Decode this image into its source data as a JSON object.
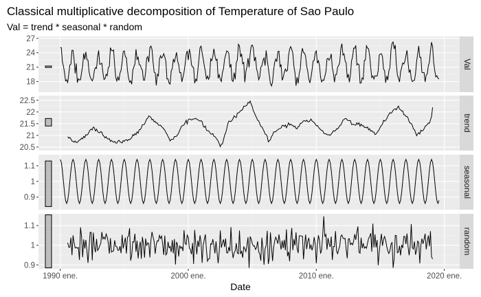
{
  "title": "Classical multiplicative decomposition of Temperature of Sao Paulo",
  "subtitle": "Val = trend * seasonal * random",
  "colors": {
    "panel_bg": "#EBEBEB",
    "grid_major": "#FFFFFF",
    "strip_bg": "#D9D9D9",
    "line": "#000000",
    "scale_bar_fill": "#BEBEBE",
    "tick_text": "#4D4D4D"
  },
  "chart_data": {
    "type": "line",
    "title": "Classical multiplicative decomposition of Temperature of Sao Paulo",
    "subtitle": "Val = trend * seasonal * random",
    "xlabel": "Date",
    "x_unit": "year",
    "xlim": [
      1988.3,
      2021.2
    ],
    "x_ticks": [
      {
        "value": 1990,
        "label": "1990 ene."
      },
      {
        "value": 2000,
        "label": "2000 ene."
      },
      {
        "value": 2010,
        "label": "2010 ene."
      },
      {
        "value": 2020,
        "label": "2020 ene."
      }
    ],
    "grid": true,
    "scale_bars": true,
    "panels": [
      {
        "strip": "Val",
        "ylim": [
          15.8,
          27.4
        ],
        "yticks": [
          18,
          21,
          24,
          27
        ],
        "scale_bar": [
          20.94,
          21.24
        ],
        "kind": "val"
      },
      {
        "strip": "trend",
        "ylim": [
          20.35,
          22.7
        ],
        "yticks": [
          20.5,
          21.0,
          21.5,
          22.0,
          22.5
        ],
        "scale_bar": [
          21.4,
          21.72
        ],
        "kind": "trend"
      },
      {
        "strip": "seasonal",
        "ylim": [
          0.82,
          1.17
        ],
        "yticks": [
          0.9,
          1.0,
          1.1
        ],
        "scale_bar": [
          0.84,
          1.13
        ],
        "kind": "seasonal"
      },
      {
        "strip": "random",
        "ylim": [
          0.88,
          1.16
        ],
        "yticks": [
          0.9,
          1.0,
          1.1
        ],
        "scale_bar": [
          0.885,
          1.155
        ],
        "kind": "random"
      }
    ],
    "start": 1990.0,
    "end": 2019.6,
    "trend_start": 1990.5,
    "trend_end": 2019.1,
    "trend_knots": [
      [
        1990.5,
        21.05
      ],
      [
        1991.0,
        20.7
      ],
      [
        1991.5,
        20.8
      ],
      [
        1992.0,
        21.0
      ],
      [
        1992.6,
        21.3
      ],
      [
        1993.2,
        21.1
      ],
      [
        1993.8,
        20.8
      ],
      [
        1994.5,
        20.7
      ],
      [
        1995.2,
        20.75
      ],
      [
        1995.8,
        21.0
      ],
      [
        1996.3,
        21.3
      ],
      [
        1996.9,
        21.8
      ],
      [
        1997.5,
        21.55
      ],
      [
        1998.1,
        21.3
      ],
      [
        1998.6,
        20.75
      ],
      [
        1999.2,
        21.1
      ],
      [
        1999.8,
        21.6
      ],
      [
        2000.4,
        21.75
      ],
      [
        2000.9,
        21.6
      ],
      [
        2001.5,
        21.2
      ],
      [
        2002.0,
        21.0
      ],
      [
        2002.6,
        20.5
      ],
      [
        2003.1,
        21.5
      ],
      [
        2003.6,
        21.8
      ],
      [
        2004.2,
        22.1
      ],
      [
        2004.8,
        22.45
      ],
      [
        2005.3,
        21.8
      ],
      [
        2005.9,
        21.2
      ],
      [
        2006.3,
        20.7
      ],
      [
        2006.8,
        21.2
      ],
      [
        2007.4,
        21.35
      ],
      [
        2007.9,
        21.5
      ],
      [
        2008.4,
        21.3
      ],
      [
        2009.0,
        21.6
      ],
      [
        2009.6,
        21.65
      ],
      [
        2010.1,
        21.4
      ],
      [
        2010.6,
        21.1
      ],
      [
        2011.1,
        21.0
      ],
      [
        2011.7,
        21.3
      ],
      [
        2012.3,
        21.75
      ],
      [
        2012.9,
        21.45
      ],
      [
        2013.4,
        21.5
      ],
      [
        2014.0,
        21.3
      ],
      [
        2014.6,
        21.05
      ],
      [
        2015.2,
        21.5
      ],
      [
        2015.8,
        22.0
      ],
      [
        2016.4,
        22.2
      ],
      [
        2016.9,
        21.9
      ],
      [
        2017.4,
        21.5
      ],
      [
        2017.9,
        21.0
      ],
      [
        2018.4,
        21.3
      ],
      [
        2018.9,
        21.6
      ],
      [
        2019.1,
        22.2
      ]
    ],
    "seasonal_amplitude": 0.14,
    "random_sd": 0.045,
    "val_noise_sd": 0.9
  }
}
